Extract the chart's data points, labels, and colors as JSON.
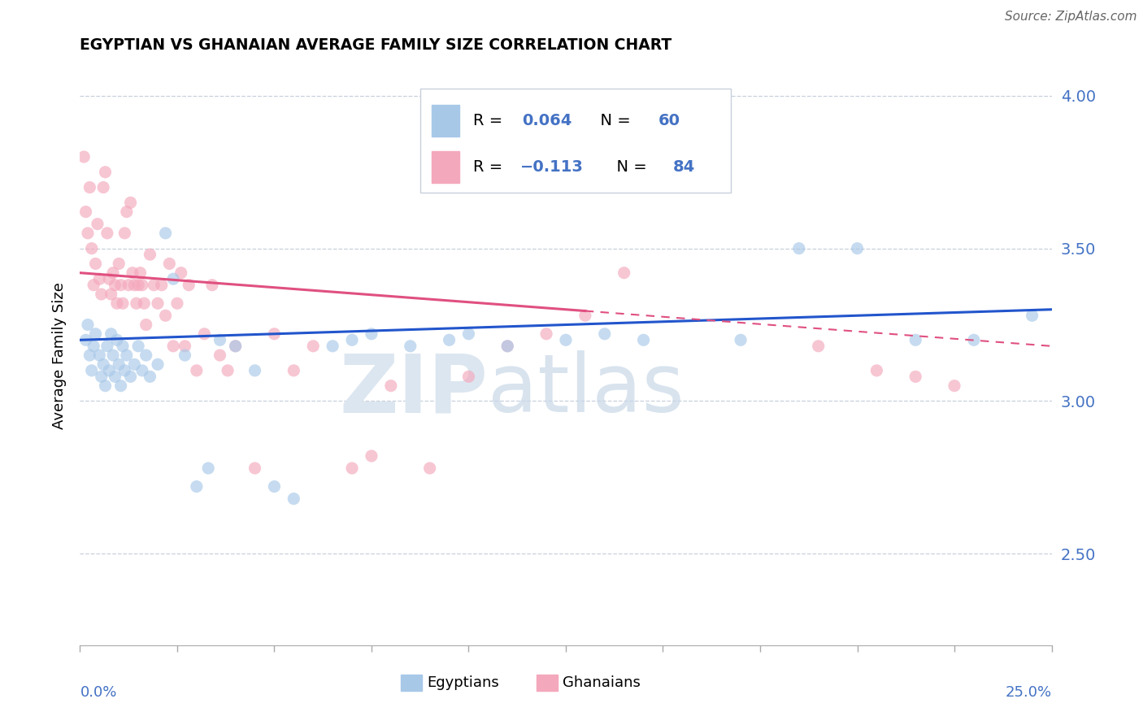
{
  "title": "EGYPTIAN VS GHANAIAN AVERAGE FAMILY SIZE CORRELATION CHART",
  "source_text": "Source: ZipAtlas.com",
  "ylabel": "Average Family Size",
  "xmin": 0.0,
  "xmax": 25.0,
  "ymin": 2.2,
  "ymax": 4.1,
  "yticks_right": [
    2.5,
    3.0,
    3.5,
    4.0
  ],
  "egyptian_color": "#a8c8e8",
  "ghanaian_color": "#f4a8bc",
  "egyptian_line_color": "#2255cc",
  "ghanaian_line_color": "#e05080",
  "blue_line_y0": 3.2,
  "blue_line_y1": 3.3,
  "pink_line_y0": 3.42,
  "pink_line_y1": 3.18,
  "pink_solid_end_x": 13.0,
  "egyptians_x": [
    0.15,
    0.2,
    0.25,
    0.3,
    0.35,
    0.4,
    0.5,
    0.55,
    0.6,
    0.65,
    0.7,
    0.75,
    0.8,
    0.85,
    0.9,
    0.95,
    1.0,
    1.05,
    1.1,
    1.15,
    1.2,
    1.3,
    1.4,
    1.5,
    1.6,
    1.7,
    1.8,
    2.0,
    2.2,
    2.4,
    2.7,
    3.0,
    3.3,
    3.6,
    4.0,
    4.5,
    5.0,
    5.5,
    6.5,
    7.0,
    7.5,
    8.5,
    9.5,
    10.0,
    11.0,
    12.5,
    13.5,
    14.5,
    17.0,
    18.5,
    20.0,
    21.5,
    23.0,
    24.5
  ],
  "egyptians_y": [
    3.2,
    3.25,
    3.15,
    3.1,
    3.18,
    3.22,
    3.15,
    3.08,
    3.12,
    3.05,
    3.18,
    3.1,
    3.22,
    3.15,
    3.08,
    3.2,
    3.12,
    3.05,
    3.18,
    3.1,
    3.15,
    3.08,
    3.12,
    3.18,
    3.1,
    3.15,
    3.08,
    3.12,
    3.55,
    3.4,
    3.15,
    2.72,
    2.78,
    3.2,
    3.18,
    3.1,
    2.72,
    2.68,
    3.18,
    3.2,
    3.22,
    3.18,
    3.2,
    3.22,
    3.18,
    3.2,
    3.22,
    3.2,
    3.2,
    3.5,
    3.5,
    3.2,
    3.2,
    3.28
  ],
  "ghanaians_x": [
    0.1,
    0.15,
    0.2,
    0.25,
    0.3,
    0.35,
    0.4,
    0.45,
    0.5,
    0.55,
    0.6,
    0.65,
    0.7,
    0.75,
    0.8,
    0.85,
    0.9,
    0.95,
    1.0,
    1.05,
    1.1,
    1.15,
    1.2,
    1.25,
    1.3,
    1.35,
    1.4,
    1.45,
    1.5,
    1.55,
    1.6,
    1.65,
    1.7,
    1.8,
    1.9,
    2.0,
    2.1,
    2.2,
    2.3,
    2.4,
    2.5,
    2.6,
    2.7,
    2.8,
    3.0,
    3.2,
    3.4,
    3.6,
    3.8,
    4.0,
    4.5,
    5.0,
    5.5,
    6.0,
    7.0,
    7.5,
    8.0,
    9.0,
    10.0,
    11.0,
    12.0,
    13.0,
    14.0,
    19.0,
    20.5,
    21.5,
    22.5
  ],
  "ghanaians_y": [
    3.8,
    3.62,
    3.55,
    3.7,
    3.5,
    3.38,
    3.45,
    3.58,
    3.4,
    3.35,
    3.7,
    3.75,
    3.55,
    3.4,
    3.35,
    3.42,
    3.38,
    3.32,
    3.45,
    3.38,
    3.32,
    3.55,
    3.62,
    3.38,
    3.65,
    3.42,
    3.38,
    3.32,
    3.38,
    3.42,
    3.38,
    3.32,
    3.25,
    3.48,
    3.38,
    3.32,
    3.38,
    3.28,
    3.45,
    3.18,
    3.32,
    3.42,
    3.18,
    3.38,
    3.1,
    3.22,
    3.38,
    3.15,
    3.1,
    3.18,
    2.78,
    3.22,
    3.1,
    3.18,
    2.78,
    2.82,
    3.05,
    2.78,
    3.08,
    3.18,
    3.22,
    3.28,
    3.42,
    3.18,
    3.1,
    3.08,
    3.05
  ]
}
